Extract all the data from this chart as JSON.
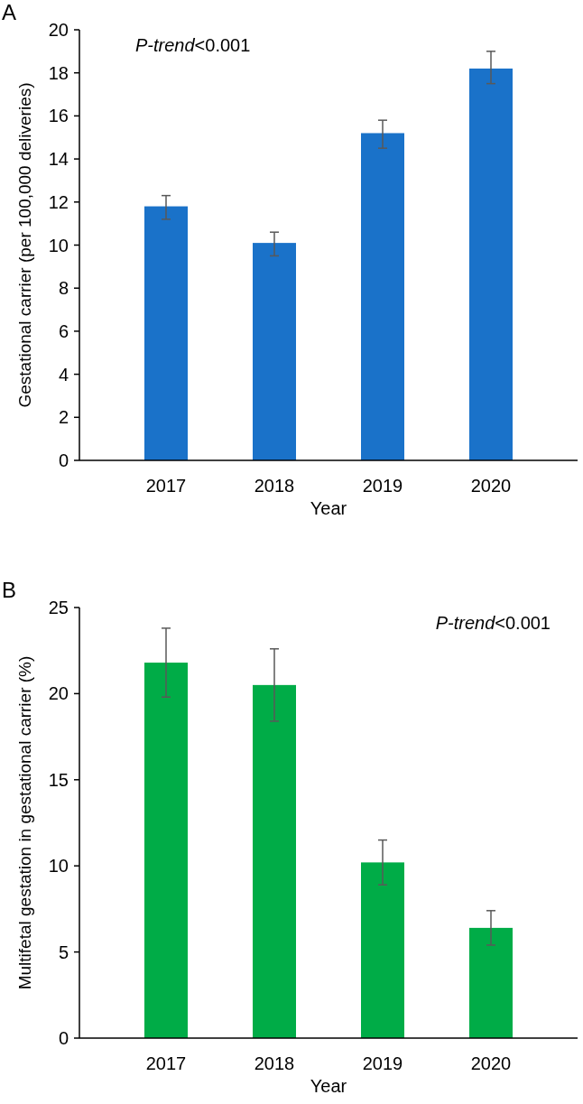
{
  "chart_data": [
    {
      "type": "bar",
      "title": "A",
      "xlabel": "Year",
      "ylabel": "Gestational carrier (per 100,000 deliveries)",
      "annotations": [
        "P-trend<0.001"
      ],
      "categories": [
        "2017",
        "2018",
        "2019",
        "2020"
      ],
      "values": [
        11.8,
        10.1,
        15.2,
        18.2
      ],
      "color": "#1a72c9",
      "errors": [
        [
          11.2,
          12.3
        ],
        [
          9.5,
          10.6
        ],
        [
          14.5,
          15.8
        ],
        [
          17.5,
          19.0
        ]
      ],
      "ylim": [
        0,
        20
      ],
      "yticks": [
        0,
        2,
        4,
        6,
        8,
        10,
        12,
        14,
        16,
        18,
        20
      ],
      "grid": false
    },
    {
      "type": "bar",
      "title": "B",
      "xlabel": "Year",
      "ylabel": "Multifetal gestation in gestational carrier (%)",
      "annotations": [
        "P-trend<0.001"
      ],
      "categories": [
        "2017",
        "2018",
        "2019",
        "2020"
      ],
      "values": [
        21.8,
        20.5,
        10.2,
        6.4
      ],
      "color": "#00ac47",
      "errors": [
        [
          19.8,
          23.8
        ],
        [
          18.4,
          22.6
        ],
        [
          8.9,
          11.5
        ],
        [
          5.4,
          7.4
        ]
      ],
      "ylim": [
        0,
        25
      ],
      "yticks": [
        0,
        5,
        10,
        15,
        20,
        25
      ],
      "grid": false
    }
  ]
}
